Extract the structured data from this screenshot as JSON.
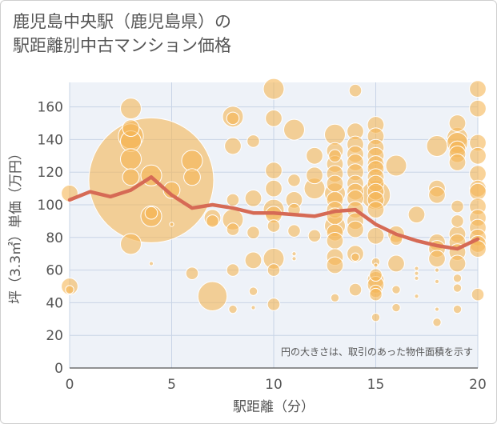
{
  "title_lines": [
    "鹿児島中央駅（鹿児島県）の",
    "駅距離別中古マンション価格"
  ],
  "chart_data": {
    "type": "scatter",
    "xlabel": "駅距離（分）",
    "ylabel": "坪（3.3㎡）単価（万円）",
    "xlim": [
      0,
      20
    ],
    "ylim": [
      0,
      175
    ],
    "xticks": [
      0,
      5,
      10,
      15,
      20
    ],
    "yticks": [
      0,
      20,
      40,
      60,
      80,
      100,
      120,
      140,
      160
    ],
    "grid": true,
    "annotation": "円の大きさは、取引のあった物件面積を示す",
    "colors": {
      "bubble": "#f5b655",
      "bubble_stroke": "#ffffff",
      "line": "#d66a55",
      "plot_bg": "#eef2f8",
      "grid": "#c8d4e6"
    },
    "series": [
      {
        "kind": "bubbles",
        "points": [
          {
            "x": 0,
            "y": 107,
            "s": 4
          },
          {
            "x": 0,
            "y": 50,
            "s": 4
          },
          {
            "x": 0,
            "y": 48,
            "s": 2
          },
          {
            "x": 3,
            "y": 159,
            "s": 5
          },
          {
            "x": 3,
            "y": 147,
            "s": 4
          },
          {
            "x": 3,
            "y": 142,
            "s": 6
          },
          {
            "x": 3,
            "y": 139,
            "s": 5
          },
          {
            "x": 3,
            "y": 128,
            "s": 5
          },
          {
            "x": 3,
            "y": 117,
            "s": 4
          },
          {
            "x": 3,
            "y": 76,
            "s": 5
          },
          {
            "x": 4,
            "y": 115,
            "s": 30
          },
          {
            "x": 4,
            "y": 118,
            "s": 5
          },
          {
            "x": 4,
            "y": 93,
            "s": 5
          },
          {
            "x": 4,
            "y": 95,
            "s": 3
          },
          {
            "x": 4,
            "y": 64,
            "s": 1
          },
          {
            "x": 5,
            "y": 109,
            "s": 4
          },
          {
            "x": 5,
            "y": 88,
            "s": 1
          },
          {
            "x": 6,
            "y": 127,
            "s": 5
          },
          {
            "x": 6,
            "y": 117,
            "s": 4
          },
          {
            "x": 6,
            "y": 58,
            "s": 3
          },
          {
            "x": 7,
            "y": 92,
            "s": 4
          },
          {
            "x": 7,
            "y": 90,
            "s": 3
          },
          {
            "x": 7,
            "y": 44,
            "s": 7
          },
          {
            "x": 8,
            "y": 154,
            "s": 5
          },
          {
            "x": 8,
            "y": 153,
            "s": 3
          },
          {
            "x": 8,
            "y": 136,
            "s": 4
          },
          {
            "x": 8,
            "y": 103,
            "s": 3
          },
          {
            "x": 8,
            "y": 91,
            "s": 5
          },
          {
            "x": 8,
            "y": 85,
            "s": 3
          },
          {
            "x": 8,
            "y": 60,
            "s": 3
          },
          {
            "x": 8,
            "y": 36,
            "s": 2
          },
          {
            "x": 9,
            "y": 139,
            "s": 3
          },
          {
            "x": 9,
            "y": 104,
            "s": 4
          },
          {
            "x": 9,
            "y": 83,
            "s": 3
          },
          {
            "x": 9,
            "y": 66,
            "s": 4
          },
          {
            "x": 9,
            "y": 47,
            "s": 2
          },
          {
            "x": 9,
            "y": 37,
            "s": 1
          },
          {
            "x": 10,
            "y": 171,
            "s": 5
          },
          {
            "x": 10,
            "y": 153,
            "s": 4
          },
          {
            "x": 10,
            "y": 121,
            "s": 4
          },
          {
            "x": 10,
            "y": 110,
            "s": 4
          },
          {
            "x": 10,
            "y": 97,
            "s": 5
          },
          {
            "x": 10,
            "y": 94,
            "s": 4
          },
          {
            "x": 10,
            "y": 87,
            "s": 3
          },
          {
            "x": 10,
            "y": 67,
            "s": 5
          },
          {
            "x": 10,
            "y": 60,
            "s": 3
          },
          {
            "x": 10,
            "y": 39,
            "s": 3
          },
          {
            "x": 11,
            "y": 146,
            "s": 5
          },
          {
            "x": 11,
            "y": 115,
            "s": 3
          },
          {
            "x": 11,
            "y": 103,
            "s": 4
          },
          {
            "x": 11,
            "y": 97,
            "s": 3
          },
          {
            "x": 11,
            "y": 84,
            "s": 3
          },
          {
            "x": 11,
            "y": 70,
            "s": 1
          },
          {
            "x": 11,
            "y": 67,
            "s": 1
          },
          {
            "x": 12,
            "y": 130,
            "s": 4
          },
          {
            "x": 12,
            "y": 118,
            "s": 4
          },
          {
            "x": 12,
            "y": 110,
            "s": 5
          },
          {
            "x": 12,
            "y": 81,
            "s": 3
          },
          {
            "x": 13,
            "y": 143,
            "s": 5
          },
          {
            "x": 13,
            "y": 133,
            "s": 4
          },
          {
            "x": 13,
            "y": 130,
            "s": 3
          },
          {
            "x": 13,
            "y": 125,
            "s": 4
          },
          {
            "x": 13,
            "y": 119,
            "s": 4
          },
          {
            "x": 13,
            "y": 113,
            "s": 4
          },
          {
            "x": 13,
            "y": 107,
            "s": 5
          },
          {
            "x": 13,
            "y": 103,
            "s": 4
          },
          {
            "x": 13,
            "y": 97,
            "s": 4
          },
          {
            "x": 13,
            "y": 93,
            "s": 4
          },
          {
            "x": 13,
            "y": 87,
            "s": 5
          },
          {
            "x": 13,
            "y": 83,
            "s": 4
          },
          {
            "x": 13,
            "y": 78,
            "s": 4
          },
          {
            "x": 13,
            "y": 68,
            "s": 4
          },
          {
            "x": 13,
            "y": 63,
            "s": 4
          },
          {
            "x": 13,
            "y": 43,
            "s": 2
          },
          {
            "x": 14,
            "y": 170,
            "s": 3
          },
          {
            "x": 14,
            "y": 145,
            "s": 4
          },
          {
            "x": 14,
            "y": 137,
            "s": 4
          },
          {
            "x": 14,
            "y": 131,
            "s": 4
          },
          {
            "x": 14,
            "y": 126,
            "s": 4
          },
          {
            "x": 14,
            "y": 120,
            "s": 4
          },
          {
            "x": 14,
            "y": 113,
            "s": 4
          },
          {
            "x": 14,
            "y": 108,
            "s": 4
          },
          {
            "x": 14,
            "y": 104,
            "s": 4
          },
          {
            "x": 14,
            "y": 97,
            "s": 4
          },
          {
            "x": 14,
            "y": 90,
            "s": 4
          },
          {
            "x": 14,
            "y": 85,
            "s": 4
          },
          {
            "x": 14,
            "y": 70,
            "s": 4
          },
          {
            "x": 14,
            "y": 68,
            "s": 2
          },
          {
            "x": 14,
            "y": 48,
            "s": 3
          },
          {
            "x": 15,
            "y": 149,
            "s": 4
          },
          {
            "x": 15,
            "y": 142,
            "s": 4
          },
          {
            "x": 15,
            "y": 135,
            "s": 4
          },
          {
            "x": 15,
            "y": 130,
            "s": 4
          },
          {
            "x": 15,
            "y": 125,
            "s": 4
          },
          {
            "x": 15,
            "y": 122,
            "s": 4
          },
          {
            "x": 15,
            "y": 117,
            "s": 4
          },
          {
            "x": 15,
            "y": 113,
            "s": 4
          },
          {
            "x": 15,
            "y": 108,
            "s": 4
          },
          {
            "x": 15,
            "y": 106,
            "s": 7
          },
          {
            "x": 15,
            "y": 103,
            "s": 4
          },
          {
            "x": 15,
            "y": 97,
            "s": 4
          },
          {
            "x": 15,
            "y": 81,
            "s": 4
          },
          {
            "x": 15,
            "y": 65,
            "s": 2
          },
          {
            "x": 15,
            "y": 63,
            "s": 1
          },
          {
            "x": 15,
            "y": 57,
            "s": 3
          },
          {
            "x": 15,
            "y": 54,
            "s": 4
          },
          {
            "x": 15,
            "y": 51,
            "s": 4
          },
          {
            "x": 15,
            "y": 47,
            "s": 3
          },
          {
            "x": 15,
            "y": 45,
            "s": 3
          },
          {
            "x": 15,
            "y": 31,
            "s": 2
          },
          {
            "x": 16,
            "y": 124,
            "s": 5
          },
          {
            "x": 16,
            "y": 82,
            "s": 4
          },
          {
            "x": 16,
            "y": 79,
            "s": 3
          },
          {
            "x": 16,
            "y": 64,
            "s": 4
          },
          {
            "x": 16,
            "y": 48,
            "s": 2
          },
          {
            "x": 16,
            "y": 37,
            "s": 2
          },
          {
            "x": 17,
            "y": 94,
            "s": 4
          },
          {
            "x": 17,
            "y": 61,
            "s": 1
          },
          {
            "x": 17,
            "y": 58,
            "s": 1
          },
          {
            "x": 17,
            "y": 55,
            "s": 1
          },
          {
            "x": 17,
            "y": 44,
            "s": 1
          },
          {
            "x": 18,
            "y": 136,
            "s": 5
          },
          {
            "x": 18,
            "y": 110,
            "s": 4
          },
          {
            "x": 18,
            "y": 106,
            "s": 4
          },
          {
            "x": 18,
            "y": 77,
            "s": 4
          },
          {
            "x": 18,
            "y": 73,
            "s": 4
          },
          {
            "x": 18,
            "y": 67,
            "s": 4
          },
          {
            "x": 18,
            "y": 60,
            "s": 1
          },
          {
            "x": 18,
            "y": 53,
            "s": 1
          },
          {
            "x": 18,
            "y": 36,
            "s": 1
          },
          {
            "x": 18,
            "y": 28,
            "s": 2
          },
          {
            "x": 19,
            "y": 150,
            "s": 4
          },
          {
            "x": 19,
            "y": 141,
            "s": 5
          },
          {
            "x": 19,
            "y": 138,
            "s": 5
          },
          {
            "x": 19,
            "y": 134,
            "s": 4
          },
          {
            "x": 19,
            "y": 131,
            "s": 4
          },
          {
            "x": 19,
            "y": 126,
            "s": 4
          },
          {
            "x": 19,
            "y": 99,
            "s": 3
          },
          {
            "x": 19,
            "y": 90,
            "s": 3
          },
          {
            "x": 19,
            "y": 82,
            "s": 4
          },
          {
            "x": 19,
            "y": 77,
            "s": 4
          },
          {
            "x": 19,
            "y": 71,
            "s": 4
          },
          {
            "x": 19,
            "y": 64,
            "s": 4
          },
          {
            "x": 19,
            "y": 55,
            "s": 2
          },
          {
            "x": 19,
            "y": 49,
            "s": 2
          },
          {
            "x": 19,
            "y": 36,
            "s": 2
          },
          {
            "x": 20,
            "y": 171,
            "s": 4
          },
          {
            "x": 20,
            "y": 159,
            "s": 4
          },
          {
            "x": 20,
            "y": 138,
            "s": 4
          },
          {
            "x": 20,
            "y": 130,
            "s": 4
          },
          {
            "x": 20,
            "y": 119,
            "s": 4
          },
          {
            "x": 20,
            "y": 110,
            "s": 4
          },
          {
            "x": 20,
            "y": 108,
            "s": 4
          },
          {
            "x": 20,
            "y": 99,
            "s": 4
          },
          {
            "x": 20,
            "y": 92,
            "s": 4
          },
          {
            "x": 20,
            "y": 86,
            "s": 4
          },
          {
            "x": 20,
            "y": 80,
            "s": 4
          },
          {
            "x": 20,
            "y": 76,
            "s": 4
          },
          {
            "x": 20,
            "y": 73,
            "s": 4
          },
          {
            "x": 20,
            "y": 45,
            "s": 3
          }
        ]
      },
      {
        "kind": "line",
        "x": [
          0,
          1,
          2,
          3,
          4,
          5,
          6,
          7,
          8,
          9,
          10,
          11,
          12,
          13,
          14,
          15,
          16,
          17,
          18,
          19,
          20
        ],
        "y": [
          103,
          108,
          105,
          109,
          117,
          106,
          98,
          100,
          98,
          95,
          95,
          94,
          93,
          96,
          97,
          88,
          82,
          78,
          75,
          73,
          79
        ]
      }
    ]
  }
}
